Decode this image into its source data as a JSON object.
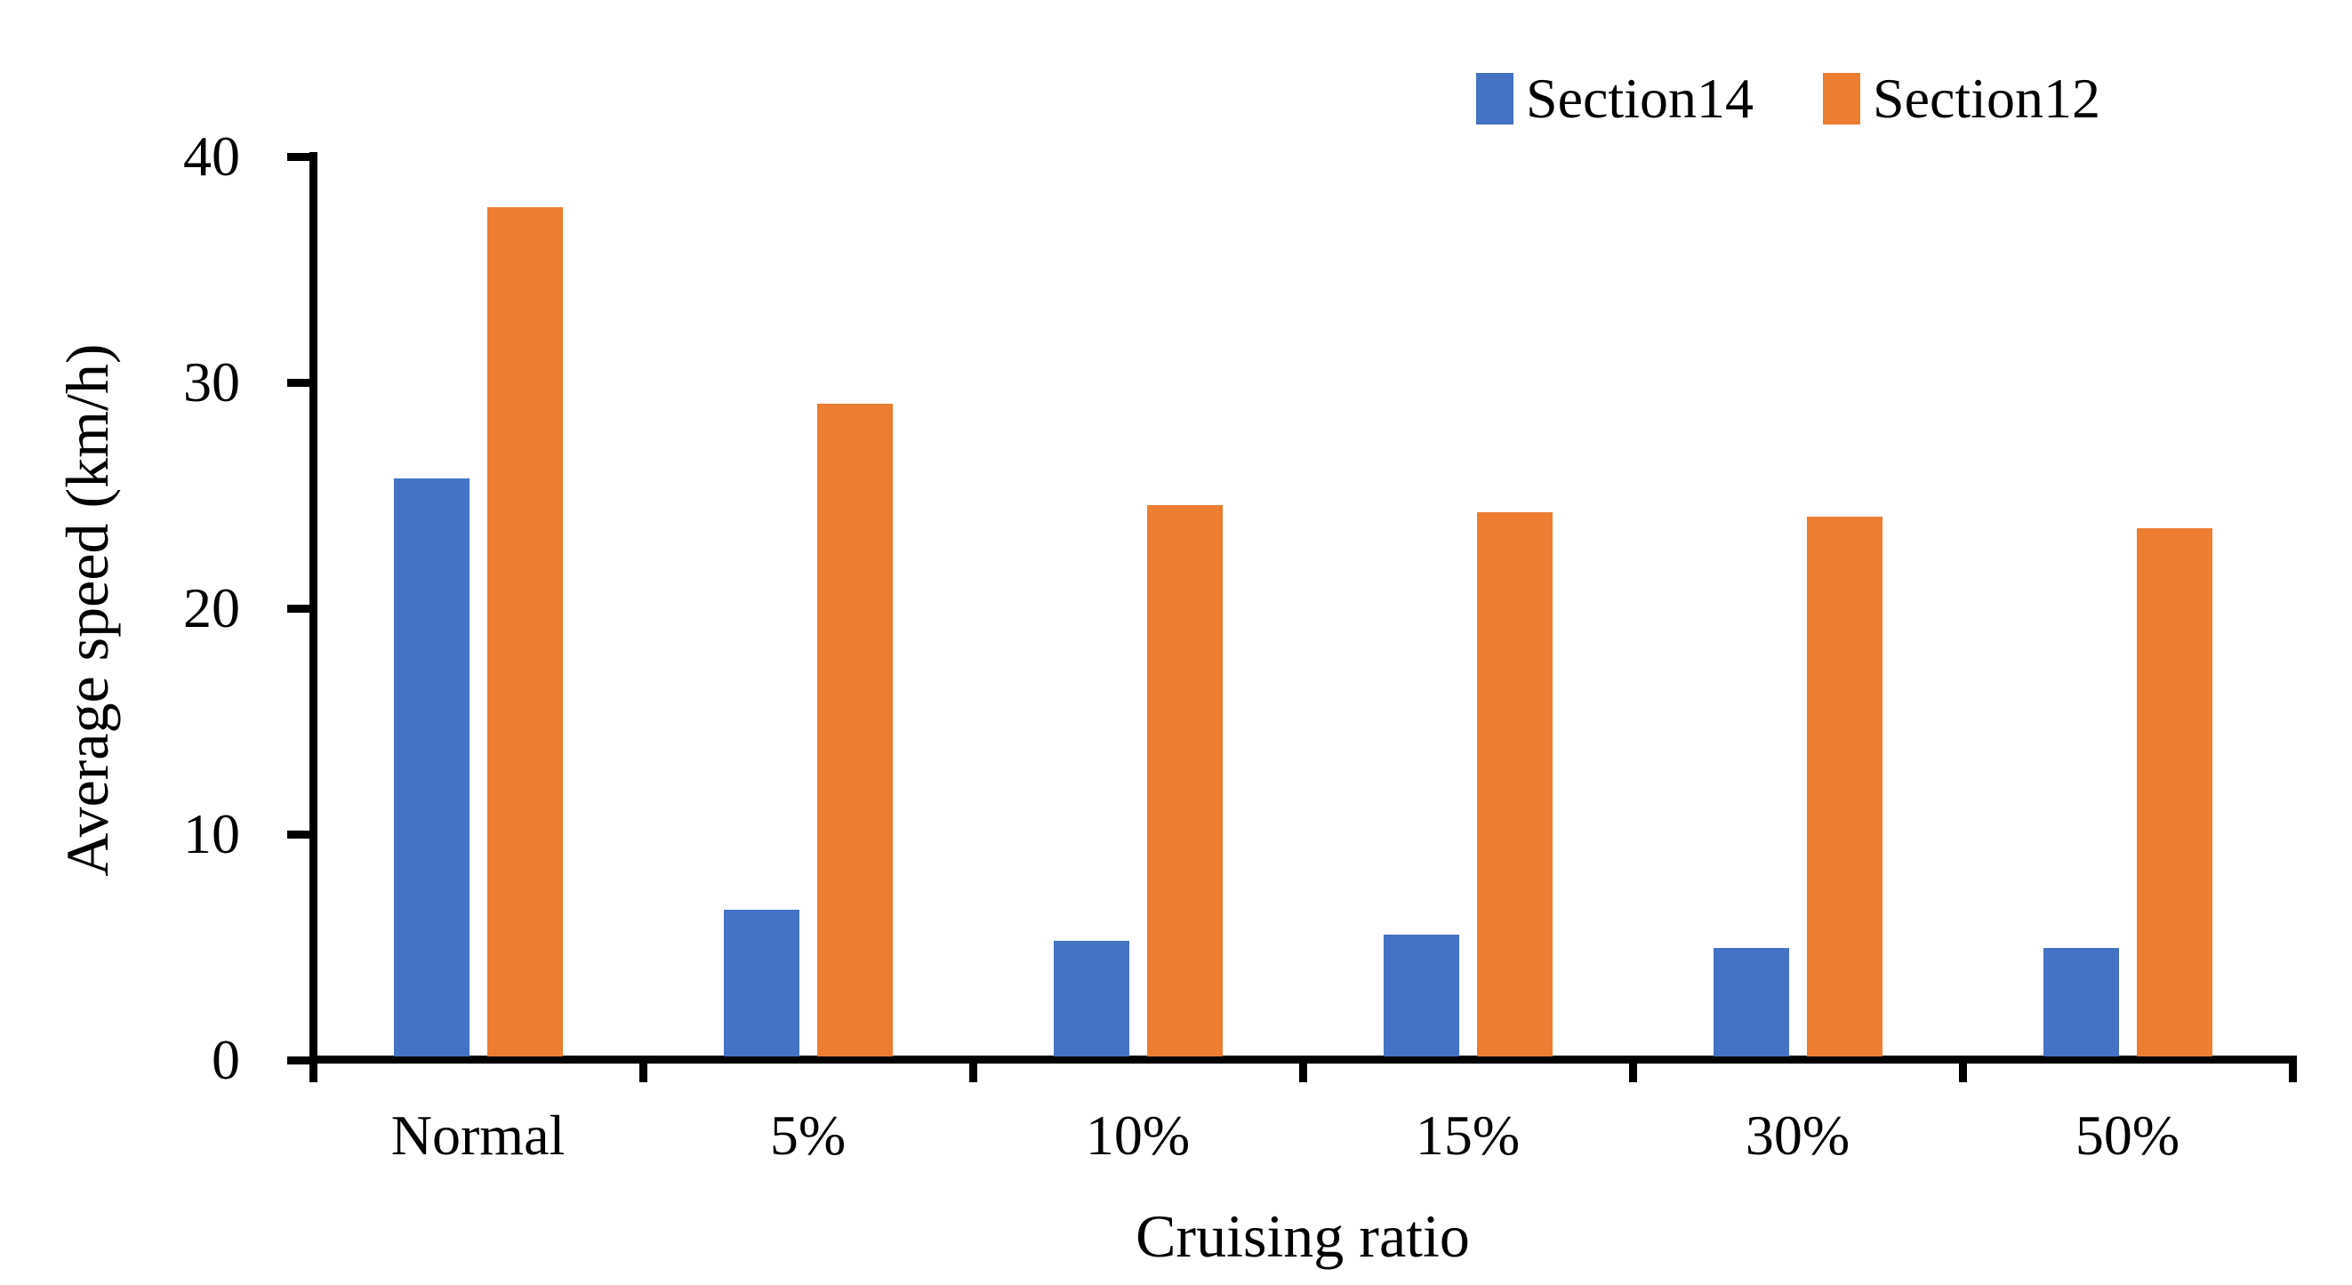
{
  "chart_data": {
    "type": "bar",
    "categories": [
      "Normal",
      "5%",
      "10%",
      "15%",
      "30%",
      "50%"
    ],
    "series": [
      {
        "name": "Section14",
        "color": "#4472C4",
        "values": [
          25.6,
          6.5,
          5.1,
          5.4,
          4.8,
          4.8
        ]
      },
      {
        "name": "Section12",
        "color": "#ED7D31",
        "values": [
          37.6,
          28.9,
          24.4,
          24.1,
          23.9,
          23.4
        ]
      }
    ],
    "title": "",
    "xlabel": "Cruising ratio",
    "ylabel": "Average speed (km/h)",
    "ylim": [
      0,
      40
    ],
    "yticks": [
      0,
      10,
      20,
      30,
      40
    ],
    "grid": false,
    "legend_position": "top-right",
    "background": "#ffffff",
    "axis_color": "#000000"
  }
}
